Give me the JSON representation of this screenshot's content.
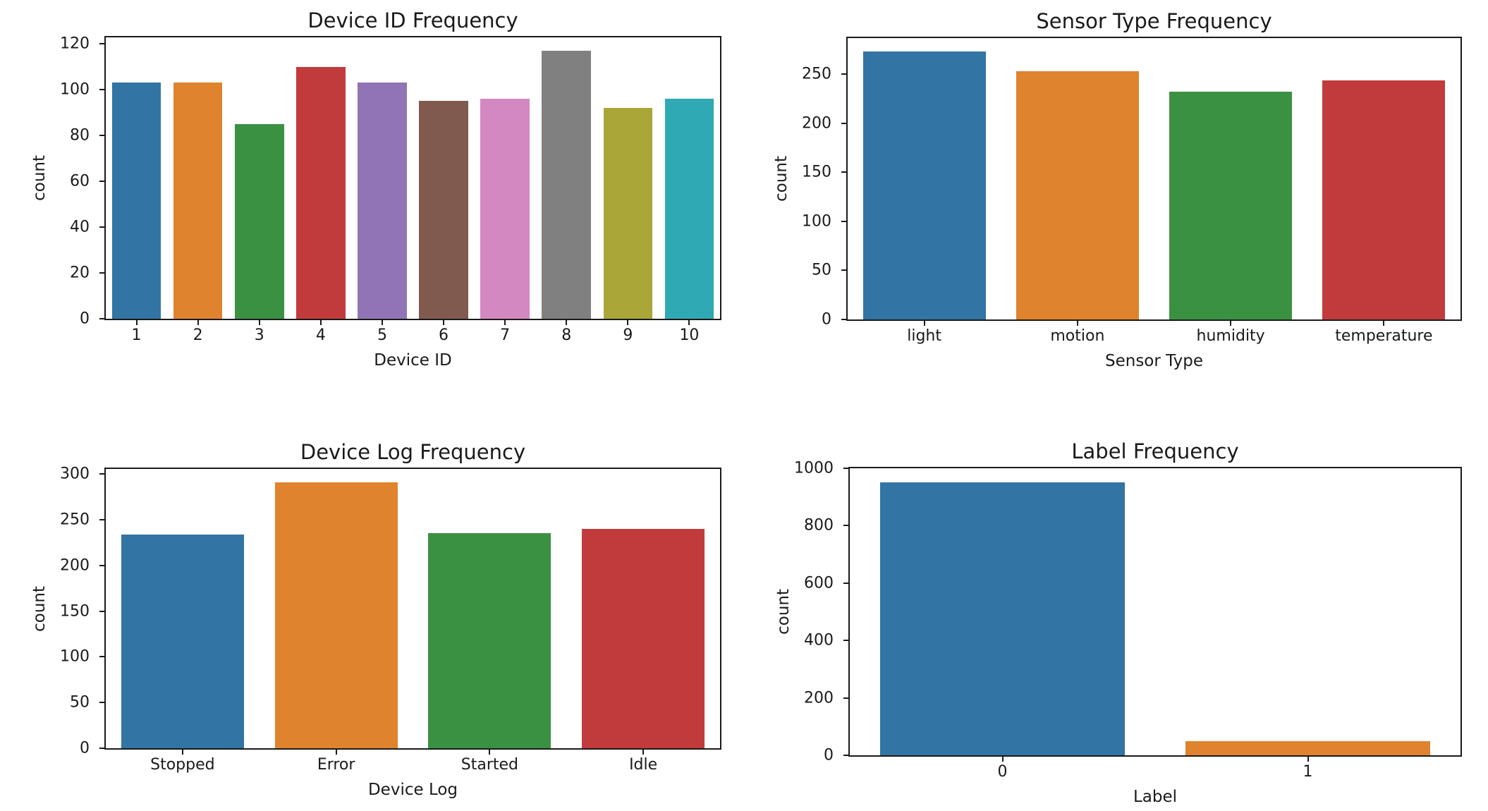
{
  "style": {
    "background": "#ffffff",
    "axis_color": "#1a1a1a",
    "text_color": "#1a1a1a",
    "palette": [
      "#3274a4",
      "#e0832e",
      "#3b9142",
      "#c23b3c",
      "#9174b5",
      "#80594f",
      "#d488c1",
      "#808080",
      "#aaa637",
      "#2fa9b4"
    ]
  },
  "chart_data": [
    {
      "type": "bar",
      "title": "Device ID Frequency",
      "xlabel": "Device ID",
      "ylabel": "count",
      "categories": [
        "1",
        "2",
        "3",
        "4",
        "5",
        "6",
        "7",
        "8",
        "9",
        "10"
      ],
      "values": [
        103,
        103,
        85,
        110,
        103,
        95,
        96,
        117,
        92,
        96
      ],
      "bar_colors": [
        "#3274a4",
        "#e0832e",
        "#3b9142",
        "#c23b3c",
        "#9174b5",
        "#80594f",
        "#d488c1",
        "#808080",
        "#aaa637",
        "#2fa9b4"
      ],
      "yticks": [
        0,
        20,
        40,
        60,
        80,
        100,
        120
      ],
      "ylim": [
        0,
        122.85
      ],
      "grid": false,
      "legend": null
    },
    {
      "type": "bar",
      "title": "Sensor Type Frequency",
      "xlabel": "Sensor Type",
      "ylabel": "count",
      "categories": [
        "light",
        "motion",
        "humidity",
        "temperature"
      ],
      "values": [
        273,
        253,
        232,
        244
      ],
      "bar_colors": [
        "#3274a4",
        "#e0832e",
        "#3b9142",
        "#c23b3c"
      ],
      "yticks": [
        0,
        50,
        100,
        150,
        200,
        250
      ],
      "ylim": [
        0,
        287
      ],
      "grid": false,
      "legend": null
    },
    {
      "type": "bar",
      "title": "Device Log Frequency",
      "xlabel": "Device Log",
      "ylabel": "count",
      "categories": [
        "Stopped",
        "Error",
        "Started",
        "Idle"
      ],
      "values": [
        234,
        291,
        235,
        240
      ],
      "bar_colors": [
        "#3274a4",
        "#e0832e",
        "#3b9142",
        "#c23b3c"
      ],
      "yticks": [
        0,
        50,
        100,
        150,
        200,
        250,
        300
      ],
      "ylim": [
        0,
        305.5
      ],
      "grid": false,
      "legend": null
    },
    {
      "type": "bar",
      "title": "Label Frequency",
      "xlabel": "Label",
      "ylabel": "count",
      "categories": [
        "0",
        "1"
      ],
      "values": [
        952,
        48
      ],
      "bar_colors": [
        "#3274a4",
        "#e0832e"
      ],
      "yticks": [
        0,
        200,
        400,
        600,
        800,
        1000
      ],
      "ylim": [
        0,
        1000
      ],
      "grid": false,
      "legend": null
    }
  ]
}
